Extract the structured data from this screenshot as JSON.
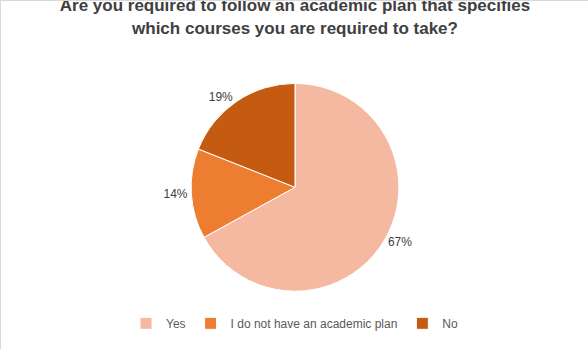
{
  "chart_data": {
    "type": "pie",
    "title": "Are you required to follow an academic plan that specifies which courses you are required to take?",
    "categories": [
      "Yes",
      "I do not have an academic plan",
      "No"
    ],
    "values": [
      67,
      14,
      19
    ],
    "value_labels": [
      "67%",
      "14%",
      "19%"
    ],
    "colors": [
      "#F4B9A0",
      "#ED7D31",
      "#C55A11"
    ],
    "data_labels": true,
    "legend": "bottom"
  }
}
